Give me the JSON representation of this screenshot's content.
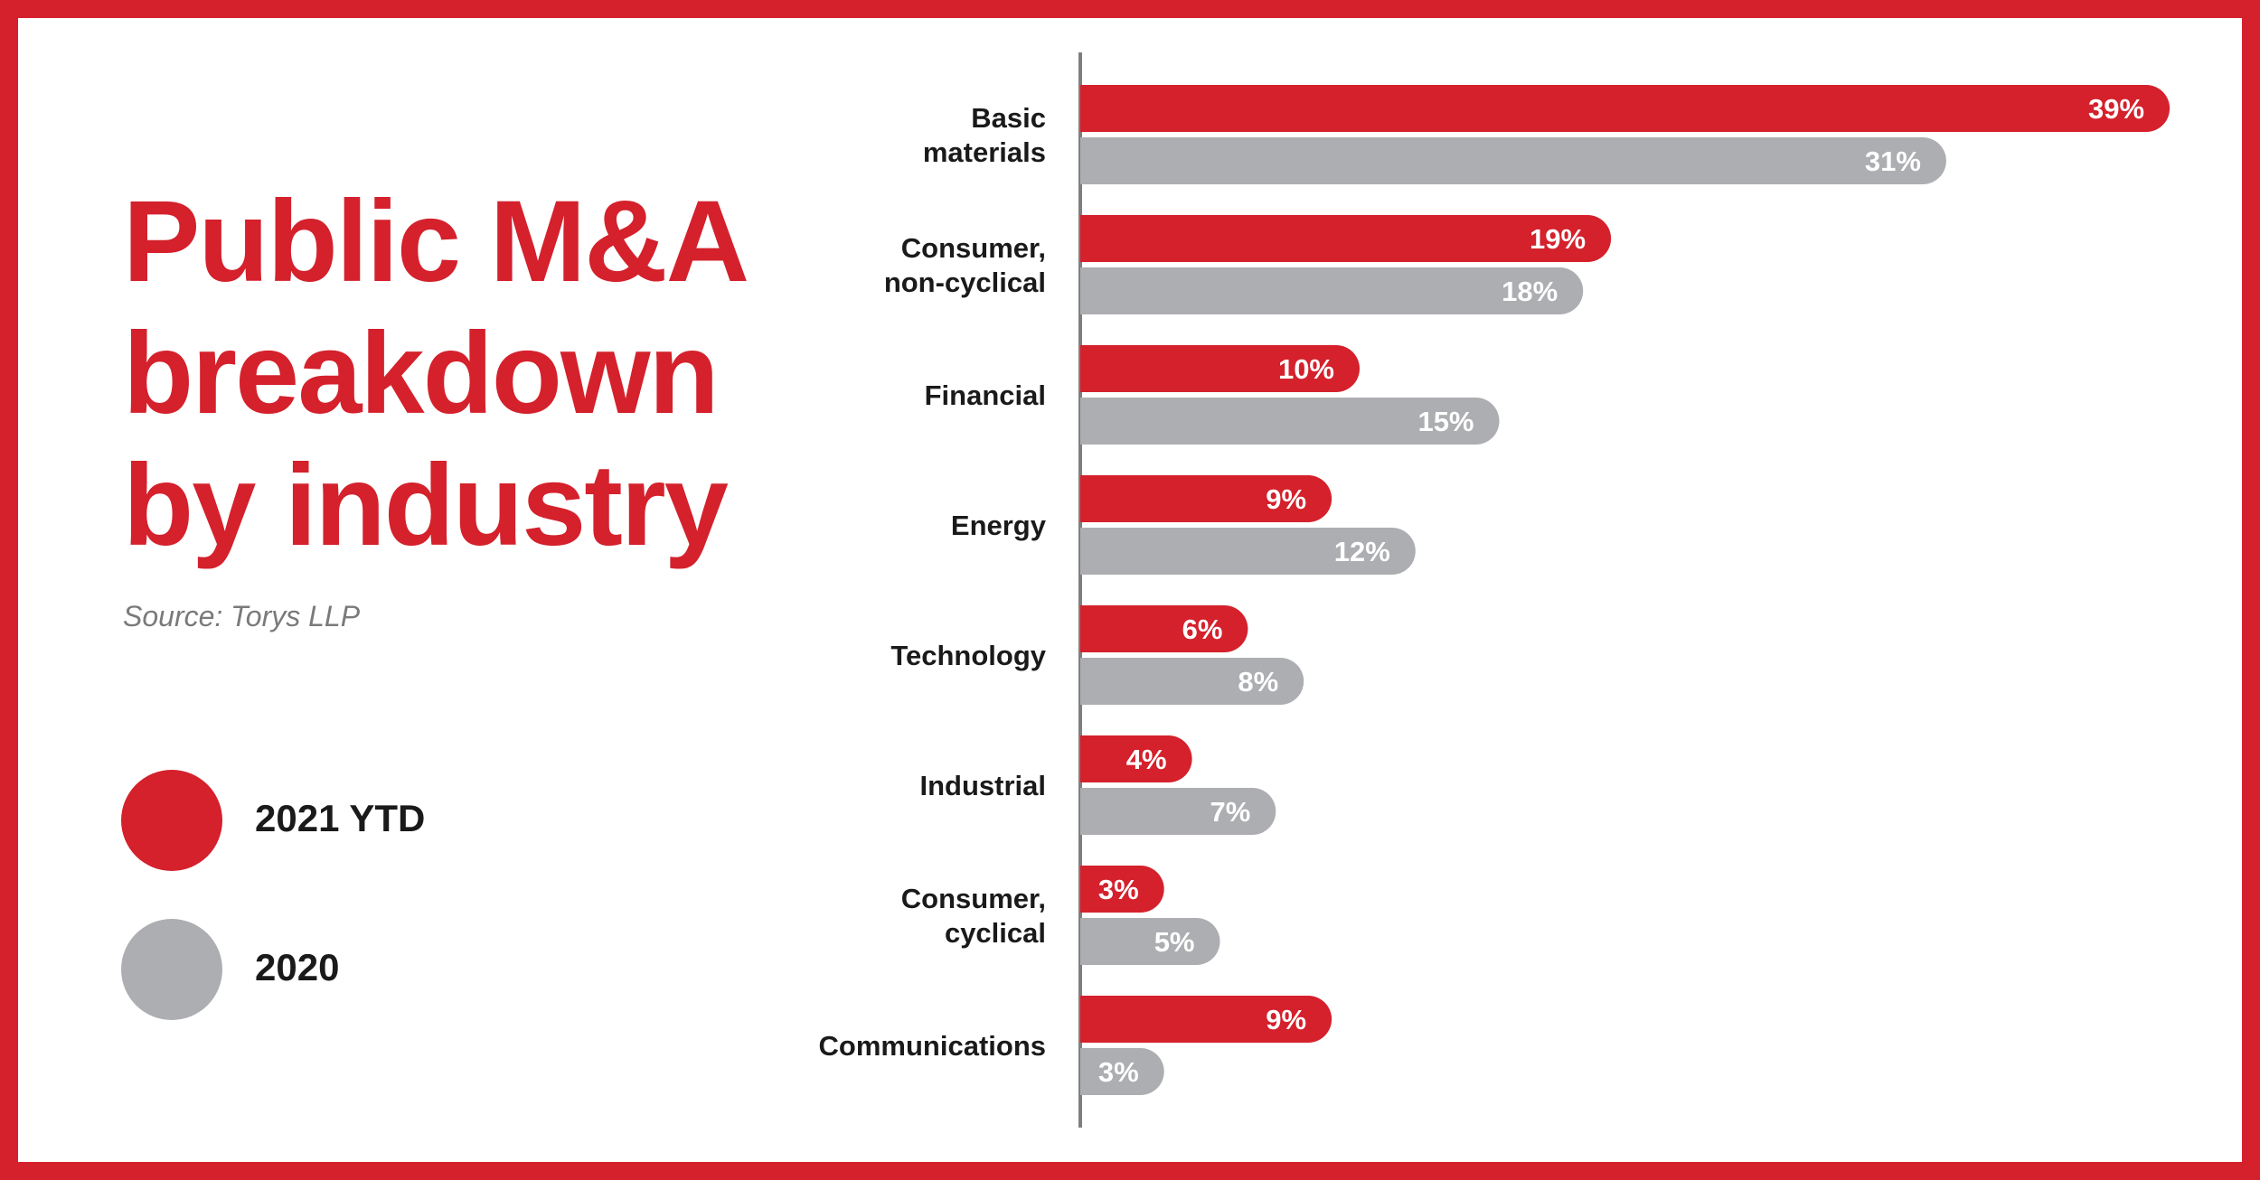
{
  "title_lines": [
    "Public M&A",
    "breakdown",
    "by industry"
  ],
  "source": "Source: Torys LLP",
  "colors": {
    "primary": "#d4212c",
    "secondary": "#adaeb1",
    "axis": "#7f7f7f"
  },
  "legend": [
    {
      "label": "2021 YTD",
      "color": "#d4212c"
    },
    {
      "label": "2020",
      "color": "#adaeb1"
    }
  ],
  "chart_data": {
    "type": "bar",
    "orientation": "horizontal",
    "categories": [
      [
        "Basic",
        "materials"
      ],
      [
        "Consumer,",
        "non-cyclical"
      ],
      [
        "Financial"
      ],
      [
        "Energy"
      ],
      [
        "Technology"
      ],
      [
        "Industrial"
      ],
      [
        "Consumer,",
        "cyclical"
      ],
      [
        "Communications"
      ]
    ],
    "series": [
      {
        "name": "2021 YTD",
        "color": "#d4212c",
        "values": [
          39,
          19,
          10,
          9,
          6,
          4,
          3,
          9
        ],
        "labels": [
          "39%",
          "19%",
          "10%",
          "9%",
          "6%",
          "4%",
          "3%",
          "9%"
        ]
      },
      {
        "name": "2020",
        "color": "#adaeb1",
        "values": [
          31,
          18,
          15,
          12,
          8,
          7,
          5,
          3
        ],
        "labels": [
          "31%",
          "18%",
          "15%",
          "12%",
          "8%",
          "7%",
          "5%",
          "3%"
        ]
      }
    ],
    "xlim": [
      0,
      40
    ],
    "grid": false,
    "legend_position": "left"
  }
}
